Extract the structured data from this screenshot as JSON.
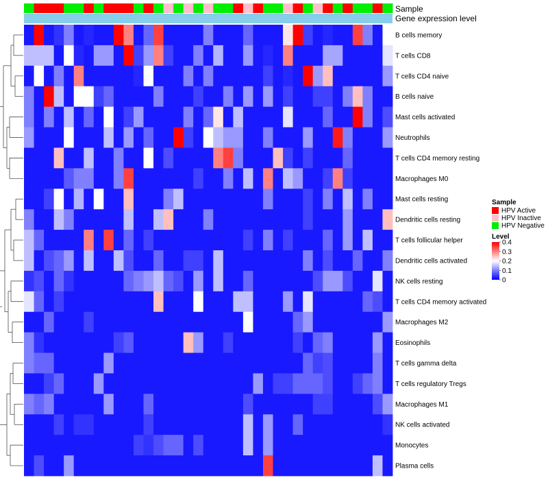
{
  "chart_data": {
    "type": "heatmap",
    "annotation_labels": [
      "Sample",
      "Gene expression level"
    ],
    "rows": [
      "B cells memory",
      "T cells CD8",
      "T cells CD4 naive",
      "B cells naive",
      "Mast cells activated",
      "Neutrophils",
      "T cells CD4 memory resting",
      "Macrophages M0",
      "Mast cells resting",
      "Dendritic cells resting",
      "T cells follicular helper",
      "Dendritic cells activated",
      "NK cells resting",
      "T cells CD4 memory activated",
      "Macrophages M2",
      "Eosinophils",
      "T cells gamma delta",
      "T cells regulatory  Tregs",
      "Macrophages M1",
      "NK cells activated",
      "Monocytes",
      "Plasma cells"
    ],
    "sample_groups": [
      "N",
      "A",
      "A",
      "A",
      "N",
      "N",
      "A",
      "N",
      "A",
      "A",
      "A",
      "N",
      "A",
      "N",
      "I",
      "N",
      "I",
      "N",
      "I",
      "N",
      "N",
      "A",
      "I",
      "A",
      "N",
      "N",
      "I",
      "A",
      "N",
      "I",
      "A",
      "N",
      "A",
      "N",
      "N",
      "A",
      "N"
    ],
    "values": [
      [
        0.02,
        0.4,
        0.02,
        0.04,
        0.1,
        0.02,
        0.03,
        0.02,
        0.02,
        0.4,
        0.3,
        0.02,
        0.08,
        0.35,
        0.02,
        0.02,
        0.02,
        0.02,
        0.1,
        0.02,
        0.02,
        0.02,
        0.08,
        0.02,
        0.02,
        0.02,
        0.22,
        0.4,
        0.05,
        0.02,
        0.03,
        0.02,
        0.02,
        0.35,
        0.1,
        0.02,
        0.2
      ],
      [
        0.15,
        0.15,
        0.15,
        0.02,
        0.2,
        0.03,
        0.02,
        0.12,
        0.12,
        0.02,
        0.4,
        0.05,
        0.12,
        0.3,
        0.05,
        0.02,
        0.02,
        0.1,
        0.02,
        0.14,
        0.02,
        0.02,
        0.12,
        0.02,
        0.03,
        0.02,
        0.3,
        0.02,
        0.02,
        0.02,
        0.13,
        0.13,
        0.02,
        0.02,
        0.02,
        0.02,
        0.18
      ],
      [
        0.02,
        0.2,
        0.02,
        0.1,
        0.02,
        0.3,
        0.02,
        0.02,
        0.02,
        0.02,
        0.02,
        0.03,
        0.2,
        0.02,
        0.02,
        0.02,
        0.1,
        0.02,
        0.1,
        0.02,
        0.02,
        0.02,
        0.02,
        0.02,
        0.05,
        0.02,
        0.03,
        0.02,
        0.4,
        0.12,
        0.25,
        0.02,
        0.02,
        0.02,
        0.02,
        0.02,
        0.12
      ],
      [
        0.1,
        0.02,
        0.4,
        0.15,
        0.02,
        0.2,
        0.2,
        0.05,
        0.08,
        0.02,
        0.02,
        0.02,
        0.02,
        0.1,
        0.02,
        0.02,
        0.02,
        0.05,
        0.02,
        0.02,
        0.1,
        0.02,
        0.12,
        0.02,
        0.12,
        0.02,
        0.05,
        0.02,
        0.02,
        0.05,
        0.05,
        0.02,
        0.1,
        0.25,
        0.1,
        0.02,
        0.02
      ],
      [
        0.1,
        0.02,
        0.1,
        0.02,
        0.15,
        0.02,
        0.08,
        0.02,
        0.2,
        0.02,
        0.05,
        0.12,
        0.02,
        0.02,
        0.02,
        0.02,
        0.1,
        0.02,
        0.08,
        0.22,
        0.02,
        0.15,
        0.02,
        0.02,
        0.02,
        0.02,
        0.18,
        0.02,
        0.02,
        0.02,
        0.08,
        0.02,
        0.02,
        0.4,
        0.1,
        0.02,
        0.06
      ],
      [
        0.12,
        0.02,
        0.02,
        0.02,
        0.2,
        0.02,
        0.02,
        0.02,
        0.15,
        0.02,
        0.12,
        0.02,
        0.08,
        0.02,
        0.02,
        0.4,
        0.05,
        0.02,
        0.2,
        0.15,
        0.12,
        0.12,
        0.02,
        0.02,
        0.1,
        0.02,
        0.02,
        0.02,
        0.12,
        0.02,
        0.02,
        0.38,
        0.1,
        0.02,
        0.02,
        0.02,
        0.12
      ],
      [
        0.02,
        0.02,
        0.02,
        0.25,
        0.02,
        0.02,
        0.15,
        0.02,
        0.02,
        0.1,
        0.02,
        0.02,
        0.2,
        0.02,
        0.06,
        0.02,
        0.02,
        0.02,
        0.02,
        0.3,
        0.35,
        0.1,
        0.02,
        0.02,
        0.02,
        0.25,
        0.05,
        0.02,
        0.05,
        0.02,
        0.02,
        0.02,
        0.08,
        0.02,
        0.02,
        0.02,
        0.02
      ],
      [
        0.02,
        0.02,
        0.02,
        0.02,
        0.07,
        0.1,
        0.1,
        0.02,
        0.02,
        0.1,
        0.35,
        0.02,
        0.02,
        0.02,
        0.02,
        0.02,
        0.02,
        0.05,
        0.02,
        0.02,
        0.1,
        0.02,
        0.15,
        0.02,
        0.3,
        0.02,
        0.15,
        0.12,
        0.02,
        0.02,
        0.05,
        0.3,
        0.05,
        0.02,
        0.02,
        0.02,
        0.02
      ],
      [
        0.02,
        0.02,
        0.05,
        0.2,
        0.02,
        0.14,
        0.02,
        0.2,
        0.02,
        0.02,
        0.25,
        0.02,
        0.02,
        0.02,
        0.1,
        0.15,
        0.02,
        0.02,
        0.02,
        0.02,
        0.02,
        0.02,
        0.02,
        0.02,
        0.1,
        0.02,
        0.02,
        0.02,
        0.05,
        0.02,
        0.1,
        0.02,
        0.15,
        0.02,
        0.1,
        0.02,
        0.02
      ],
      [
        0.1,
        0.02,
        0.02,
        0.15,
        0.1,
        0.02,
        0.02,
        0.02,
        0.02,
        0.02,
        0.15,
        0.02,
        0.02,
        0.15,
        0.25,
        0.02,
        0.02,
        0.02,
        0.1,
        0.02,
        0.02,
        0.02,
        0.02,
        0.02,
        0.02,
        0.02,
        0.02,
        0.02,
        0.05,
        0.02,
        0.02,
        0.02,
        0.12,
        0.02,
        0.02,
        0.02,
        0.25
      ],
      [
        0.15,
        0.08,
        0.02,
        0.02,
        0.02,
        0.02,
        0.3,
        0.02,
        0.35,
        0.02,
        0.08,
        0.02,
        0.05,
        0.02,
        0.02,
        0.02,
        0.02,
        0.02,
        0.02,
        0.02,
        0.02,
        0.02,
        0.05,
        0.02,
        0.1,
        0.02,
        0.05,
        0.02,
        0.02,
        0.02,
        0.08,
        0.02,
        0.12,
        0.02,
        0.15,
        0.02,
        0.02
      ],
      [
        0.15,
        0.02,
        0.06,
        0.08,
        0.12,
        0.02,
        0.15,
        0.02,
        0.02,
        0.15,
        0.06,
        0.02,
        0.02,
        0.08,
        0.02,
        0.02,
        0.05,
        0.05,
        0.02,
        0.15,
        0.02,
        0.02,
        0.02,
        0.02,
        0.02,
        0.02,
        0.02,
        0.02,
        0.1,
        0.02,
        0.06,
        0.02,
        0.02,
        0.08,
        0.02,
        0.02,
        0.1
      ],
      [
        0.04,
        0.06,
        0.02,
        0.08,
        0.04,
        0.02,
        0.02,
        0.02,
        0.02,
        0.02,
        0.08,
        0.1,
        0.12,
        0.15,
        0.08,
        0.06,
        0.02,
        0.12,
        0.02,
        0.15,
        0.02,
        0.02,
        0.08,
        0.02,
        0.02,
        0.02,
        0.02,
        0.02,
        0.02,
        0.06,
        0.12,
        0.12,
        0.06,
        0.02,
        0.02,
        0.18,
        0.02
      ],
      [
        0.18,
        0.08,
        0.02,
        0.05,
        0.02,
        0.02,
        0.02,
        0.02,
        0.02,
        0.02,
        0.02,
        0.02,
        0.02,
        0.25,
        0.02,
        0.02,
        0.02,
        0.2,
        0.02,
        0.02,
        0.02,
        0.15,
        0.15,
        0.02,
        0.02,
        0.02,
        0.12,
        0.02,
        0.18,
        0.02,
        0.02,
        0.02,
        0.02,
        0.02,
        0.08,
        0.06,
        0.02
      ],
      [
        0.02,
        0.02,
        0.08,
        0.02,
        0.02,
        0.02,
        0.05,
        0.02,
        0.02,
        0.02,
        0.02,
        0.02,
        0.02,
        0.02,
        0.02,
        0.02,
        0.02,
        0.02,
        0.02,
        0.02,
        0.02,
        0.02,
        0.2,
        0.02,
        0.02,
        0.02,
        0.02,
        0.08,
        0.12,
        0.02,
        0.02,
        0.02,
        0.02,
        0.02,
        0.02,
        0.02,
        0.12
      ],
      [
        0.1,
        0.04,
        0.02,
        0.02,
        0.02,
        0.02,
        0.02,
        0.02,
        0.02,
        0.05,
        0.07,
        0.02,
        0.02,
        0.02,
        0.02,
        0.02,
        0.25,
        0.12,
        0.02,
        0.02,
        0.05,
        0.02,
        0.02,
        0.02,
        0.02,
        0.02,
        0.02,
        0.05,
        0.02,
        0.08,
        0.1,
        0.02,
        0.02,
        0.02,
        0.02,
        0.12,
        0.02
      ],
      [
        0.1,
        0.08,
        0.08,
        0.02,
        0.02,
        0.02,
        0.02,
        0.02,
        0.12,
        0.02,
        0.02,
        0.02,
        0.02,
        0.02,
        0.02,
        0.02,
        0.02,
        0.02,
        0.02,
        0.02,
        0.02,
        0.02,
        0.02,
        0.02,
        0.02,
        0.02,
        0.02,
        0.02,
        0.08,
        0.05,
        0.06,
        0.02,
        0.02,
        0.02,
        0.02,
        0.1,
        0.02
      ],
      [
        0.02,
        0.02,
        0.05,
        0.08,
        0.02,
        0.02,
        0.02,
        0.12,
        0.02,
        0.02,
        0.02,
        0.02,
        0.02,
        0.02,
        0.02,
        0.02,
        0.02,
        0.02,
        0.02,
        0.02,
        0.02,
        0.02,
        0.02,
        0.12,
        0.02,
        0.05,
        0.05,
        0.08,
        0.08,
        0.08,
        0.06,
        0.02,
        0.02,
        0.05,
        0.08,
        0.1,
        0.02
      ],
      [
        0.1,
        0.08,
        0.1,
        0.02,
        0.02,
        0.02,
        0.02,
        0.02,
        0.12,
        0.02,
        0.02,
        0.02,
        0.08,
        0.02,
        0.02,
        0.02,
        0.02,
        0.02,
        0.02,
        0.02,
        0.02,
        0.02,
        0.06,
        0.02,
        0.02,
        0.02,
        0.02,
        0.02,
        0.02,
        0.05,
        0.05,
        0.02,
        0.02,
        0.02,
        0.02,
        0.06,
        0.12
      ],
      [
        0.02,
        0.02,
        0.02,
        0.05,
        0.02,
        0.04,
        0.04,
        0.02,
        0.02,
        0.02,
        0.02,
        0.02,
        0.05,
        0.02,
        0.02,
        0.02,
        0.02,
        0.02,
        0.02,
        0.02,
        0.02,
        0.02,
        0.15,
        0.02,
        0.12,
        0.02,
        0.02,
        0.08,
        0.02,
        0.02,
        0.02,
        0.02,
        0.02,
        0.02,
        0.02,
        0.02,
        0.04
      ],
      [
        0.02,
        0.02,
        0.02,
        0.02,
        0.02,
        0.02,
        0.02,
        0.02,
        0.02,
        0.02,
        0.02,
        0.05,
        0.04,
        0.06,
        0.08,
        0.08,
        0.02,
        0.06,
        0.02,
        0.02,
        0.02,
        0.02,
        0.15,
        0.02,
        0.12,
        0.02,
        0.02,
        0.02,
        0.02,
        0.02,
        0.02,
        0.02,
        0.02,
        0.02,
        0.02,
        0.02,
        0.02
      ],
      [
        0.02,
        0.06,
        0.02,
        0.02,
        0.12,
        0.02,
        0.02,
        0.02,
        0.02,
        0.02,
        0.02,
        0.02,
        0.02,
        0.02,
        0.02,
        0.02,
        0.02,
        0.02,
        0.02,
        0.02,
        0.02,
        0.02,
        0.02,
        0.02,
        0.35,
        0.02,
        0.02,
        0.02,
        0.02,
        0.02,
        0.02,
        0.02,
        0.02,
        0.02,
        0.02,
        0.15,
        0.02
      ]
    ],
    "legend_sample": {
      "title": "Sample",
      "items": [
        {
          "key": "A",
          "label": "HPV Active",
          "color": "#ff0000"
        },
        {
          "key": "I",
          "label": "HPV Inactive",
          "color": "#ffc0cb"
        },
        {
          "key": "N",
          "label": "HPV Negative",
          "color": "#00ee00"
        }
      ]
    },
    "legend_level": {
      "title": "Level",
      "ticks": [
        "0.4",
        "0.3",
        "0.2",
        "0.1",
        "0"
      ],
      "range": [
        0,
        0.4
      ],
      "low_color": "#0000ff",
      "mid_color": "#ffffff",
      "high_color": "#ff0000"
    },
    "expression_bar_color": "#87ceeb"
  }
}
